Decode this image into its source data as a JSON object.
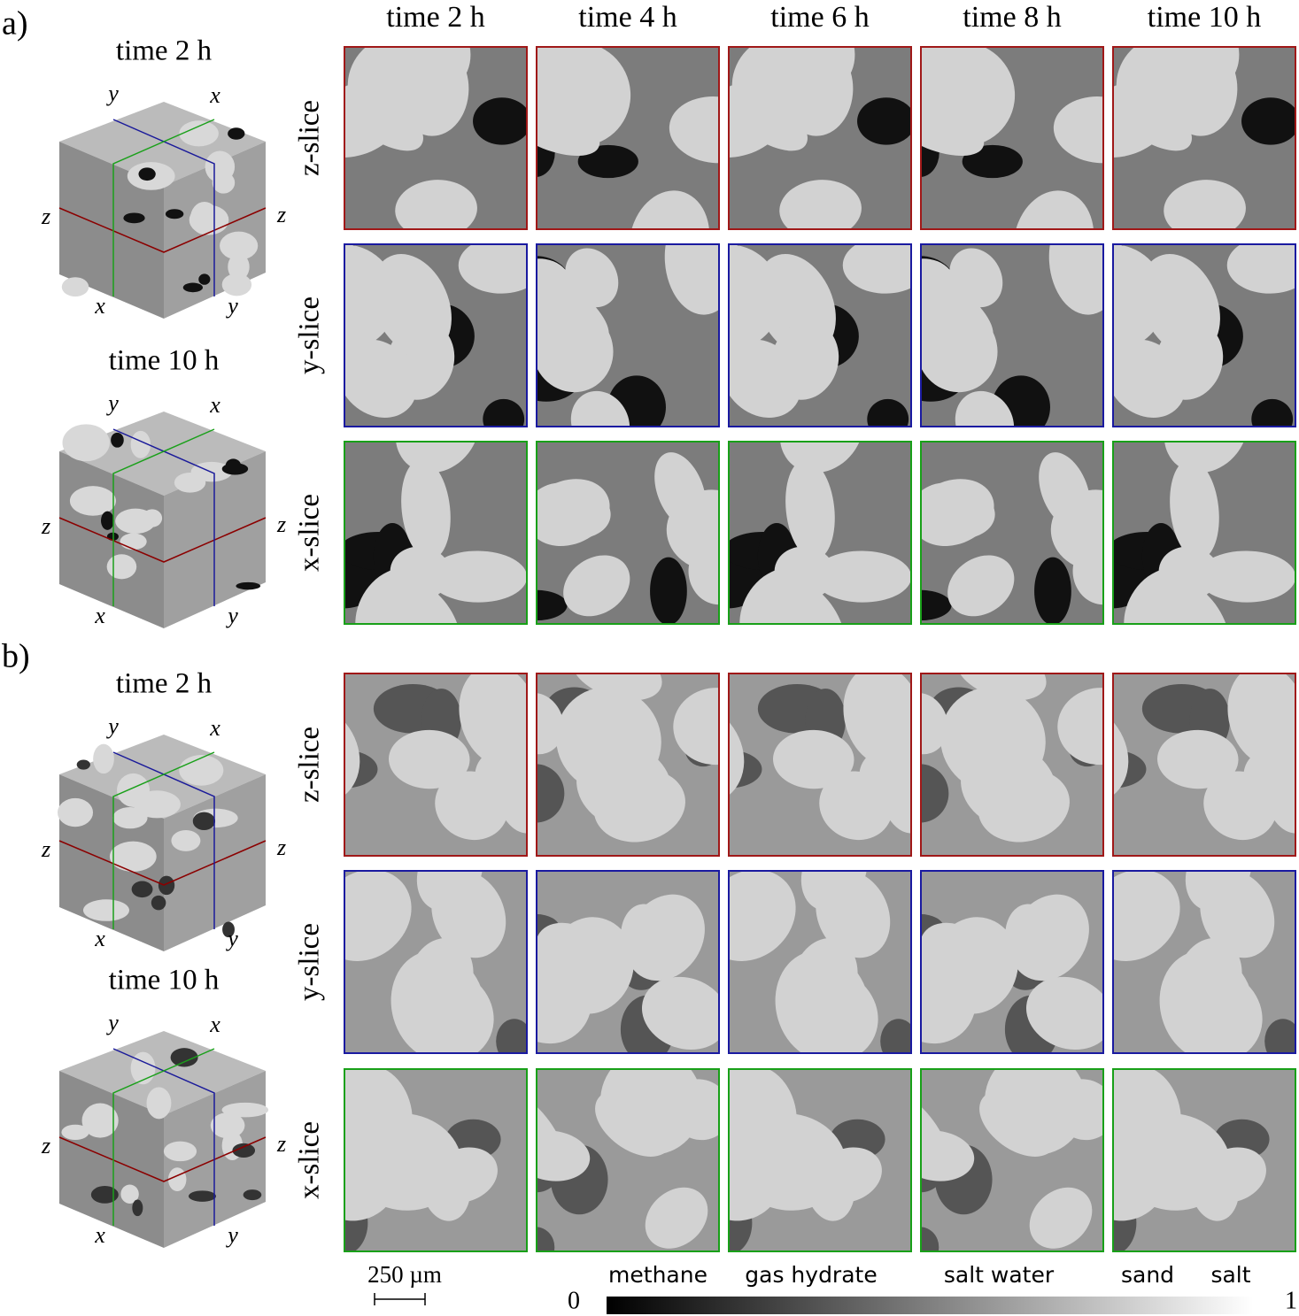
{
  "panels": [
    {
      "label": "a)",
      "column_headers": [
        "time 2 h",
        "time 4 h",
        "time 6 h",
        "time 8 h",
        "time 10 h"
      ],
      "row_labels": [
        "z-slice",
        "y-slice",
        "x-slice"
      ],
      "cubes": [
        {
          "title": "time 2 h",
          "axis_labels": [
            "y",
            "x",
            "z",
            "z",
            "x",
            "y"
          ]
        },
        {
          "title": "time 10 h",
          "axis_labels": [
            "y",
            "x",
            "z",
            "z",
            "x",
            "y"
          ]
        }
      ]
    },
    {
      "label": "b)",
      "row_labels": [
        "z-slice",
        "y-slice",
        "x-slice"
      ],
      "cubes": [
        {
          "title": "time 2 h",
          "axis_labels": [
            "y",
            "x",
            "z",
            "z",
            "x",
            "y"
          ]
        },
        {
          "title": "time 10 h",
          "axis_labels": [
            "y",
            "x",
            "z",
            "z",
            "x",
            "y"
          ]
        }
      ]
    }
  ],
  "scale_bar": "250 µm",
  "colorbar": {
    "min": 0,
    "max": 1,
    "labels": [
      "methane",
      "gas hydrate",
      "salt water",
      "sand",
      "salt"
    ]
  }
}
